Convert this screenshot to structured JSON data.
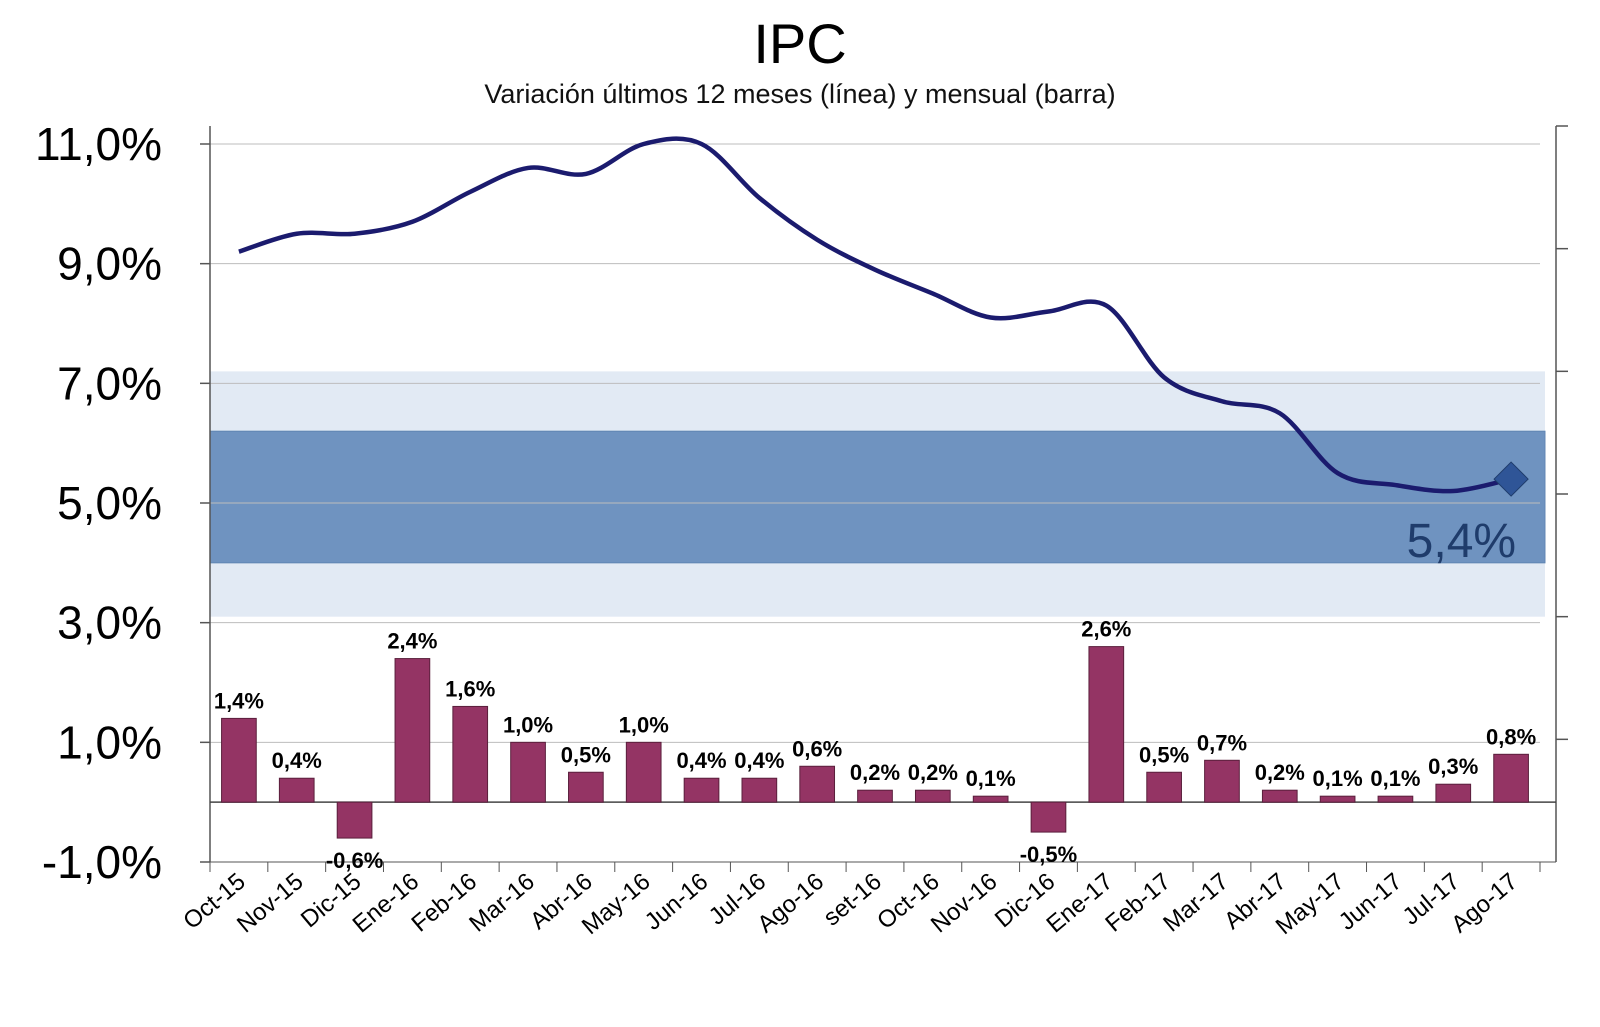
{
  "chart_data": {
    "type": "bar+line",
    "title": "IPC",
    "subtitle": "Variación últimos 12 meses (línea) y mensual (barra)",
    "categories": [
      "Oct-15",
      "Nov-15",
      "Dic-15",
      "Ene-16",
      "Feb-16",
      "Mar-16",
      "Abr-16",
      "May-16",
      "Jun-16",
      "Jul-16",
      "Ago-16",
      "set-16",
      "Oct-16",
      "Nov-16",
      "Dic-16",
      "Ene-17",
      "Feb-17",
      "Mar-17",
      "Abr-17",
      "May-17",
      "Jun-17",
      "Jul-17",
      "Ago-17"
    ],
    "bar_series": {
      "values": [
        1.4,
        0.4,
        -0.6,
        2.4,
        1.6,
        1.0,
        0.5,
        1.0,
        0.4,
        0.4,
        0.6,
        0.2,
        0.2,
        0.1,
        -0.5,
        2.6,
        0.5,
        0.7,
        0.2,
        0.1,
        0.1,
        0.3,
        0.8
      ],
      "labels": [
        "1,4%",
        "0,4%",
        "-0,6%",
        "2,4%",
        "1,6%",
        "1,0%",
        "0,5%",
        "1,0%",
        "0,4%",
        "0,4%",
        "0,6%",
        "0,2%",
        "0,2%",
        "0,1%",
        "-0,5%",
        "2,6%",
        "0,5%",
        "0,7%",
        "0,2%",
        "0,1%",
        "0,1%",
        "0,3%",
        "0,8%"
      ],
      "color": "#943464"
    },
    "line_series": {
      "values": [
        9.2,
        9.5,
        9.5,
        9.7,
        10.2,
        10.6,
        10.5,
        11.0,
        11.0,
        10.1,
        9.4,
        8.9,
        8.5,
        8.1,
        8.2,
        8.3,
        7.1,
        6.7,
        6.5,
        5.5,
        5.3,
        5.2,
        5.4
      ],
      "color": "#1b1b6e",
      "last_label": "5,4%",
      "last_marker_color": "#2f5597"
    },
    "target_bands": [
      {
        "low": 3.1,
        "high": 7.2,
        "color": "#dbe5f1"
      },
      {
        "low": 4.0,
        "high": 6.2,
        "color": "#5b84b8"
      }
    ],
    "ylim": [
      -1.0,
      11.0
    ],
    "yticks": [
      -1.0,
      1.0,
      3.0,
      5.0,
      7.0,
      9.0,
      11.0
    ],
    "ytick_labels": [
      "-1,0%",
      "1,0%",
      "3,0%",
      "5,0%",
      "7,0%",
      "9,0%",
      "11,0%"
    ],
    "grid": true,
    "legend": "none",
    "xlabel": "",
    "ylabel": ""
  }
}
